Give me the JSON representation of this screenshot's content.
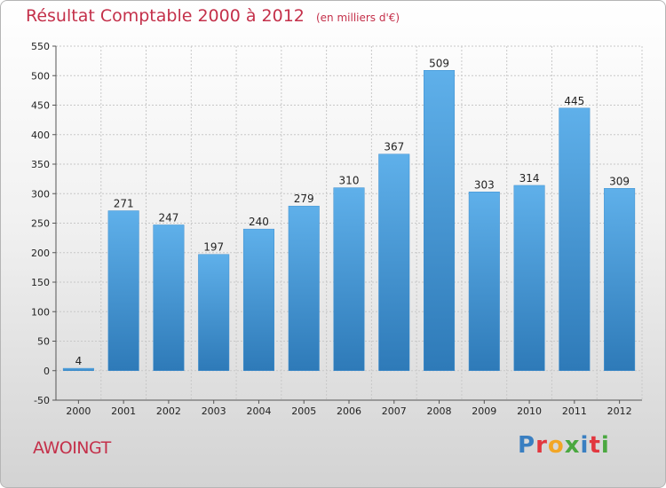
{
  "header": {
    "title": "Résultat Comptable 2000 à 2012",
    "unit": "(en milliers d'€)"
  },
  "footer": {
    "commune": "AWOINGT",
    "logo_letters": [
      {
        "ch": "P",
        "color": "#3a7fc1"
      },
      {
        "ch": "r",
        "color": "#e2373f"
      },
      {
        "ch": "o",
        "color": "#f2a626"
      },
      {
        "ch": "x",
        "color": "#4aa840"
      },
      {
        "ch": "i",
        "color": "#3a7fc1"
      },
      {
        "ch": "t",
        "color": "#e2373f"
      },
      {
        "ch": "i",
        "color": "#4aa840"
      }
    ]
  },
  "chart_data": {
    "type": "bar",
    "title": "Résultat Comptable 2000 à 2012",
    "categories": [
      "2000",
      "2001",
      "2002",
      "2003",
      "2004",
      "2005",
      "2006",
      "2007",
      "2008",
      "2009",
      "2010",
      "2011",
      "2012"
    ],
    "values": [
      4,
      271,
      247,
      197,
      240,
      279,
      310,
      367,
      509,
      303,
      314,
      445,
      309
    ],
    "ylim": [
      -50,
      550
    ],
    "yticks": [
      -50,
      0,
      50,
      100,
      150,
      200,
      250,
      300,
      350,
      400,
      450,
      500,
      550
    ],
    "grid": true,
    "bar_color": "#4d9fdf",
    "xlabel": "",
    "ylabel": ""
  }
}
